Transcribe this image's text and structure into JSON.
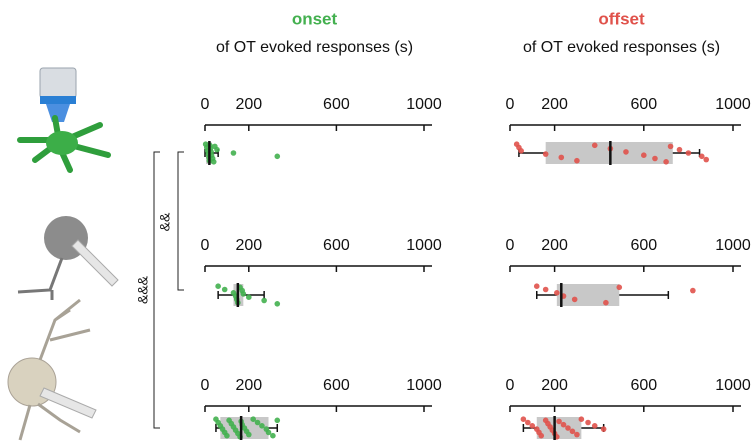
{
  "annotations": [
    "&&",
    "&&&"
  ],
  "chart_data": [
    {
      "type": "box",
      "title": "onset",
      "subtitle": "of OT evoked responses (s)",
      "color": "#43b04f",
      "xlim": [
        0,
        1000
      ],
      "xticks": [
        0,
        200,
        600,
        1000
      ],
      "min": 0,
      "q1": 5,
      "median": 20,
      "q3": 30,
      "max": 60,
      "points": [
        3,
        8,
        12,
        15,
        18,
        20,
        22,
        25,
        28,
        30,
        35,
        40,
        45,
        55,
        130,
        330
      ]
    },
    {
      "type": "box",
      "title": "offset",
      "subtitle": "of OT evoked responses (s)",
      "color": "#e0524b",
      "xlim": [
        0,
        1000
      ],
      "xticks": [
        0,
        200,
        600,
        1000
      ],
      "min": 40,
      "q1": 160,
      "median": 450,
      "q3": 730,
      "max": 850,
      "points": [
        30,
        40,
        50,
        160,
        230,
        300,
        380,
        450,
        520,
        600,
        650,
        700,
        720,
        760,
        800,
        860,
        880
      ]
    },
    {
      "type": "box",
      "color": "#43b04f",
      "xlim": [
        0,
        1000
      ],
      "xticks": [
        0,
        200,
        600,
        1000
      ],
      "min": 60,
      "q1": 130,
      "median": 150,
      "q3": 175,
      "max": 270,
      "points": [
        60,
        90,
        130,
        140,
        145,
        150,
        160,
        170,
        175,
        200,
        270,
        330
      ]
    },
    {
      "type": "box",
      "color": "#e0524b",
      "xlim": [
        0,
        1000
      ],
      "xticks": [
        0,
        200,
        600,
        1000
      ],
      "min": 120,
      "q1": 210,
      "median": 230,
      "q3": 490,
      "max": 710,
      "points": [
        120,
        160,
        210,
        240,
        290,
        430,
        490,
        820
      ]
    },
    {
      "type": "box",
      "color": "#43b04f",
      "xlim": [
        0,
        1000
      ],
      "xticks": [
        0,
        200,
        600,
        1000
      ],
      "min": 50,
      "q1": 70,
      "median": 165,
      "q3": 290,
      "max": 330,
      "points": [
        50,
        60,
        70,
        80,
        90,
        100,
        110,
        120,
        130,
        140,
        150,
        160,
        165,
        170,
        180,
        190,
        200,
        220,
        240,
        260,
        280,
        290,
        310,
        330
      ]
    },
    {
      "type": "box",
      "color": "#e0524b",
      "xlim": [
        0,
        1000
      ],
      "xticks": [
        0,
        200,
        600,
        1000
      ],
      "min": 60,
      "q1": 120,
      "median": 200,
      "q3": 320,
      "max": 420,
      "points": [
        60,
        80,
        100,
        120,
        130,
        140,
        160,
        170,
        180,
        190,
        200,
        210,
        220,
        240,
        260,
        280,
        300,
        320,
        350,
        380,
        420
      ]
    }
  ]
}
